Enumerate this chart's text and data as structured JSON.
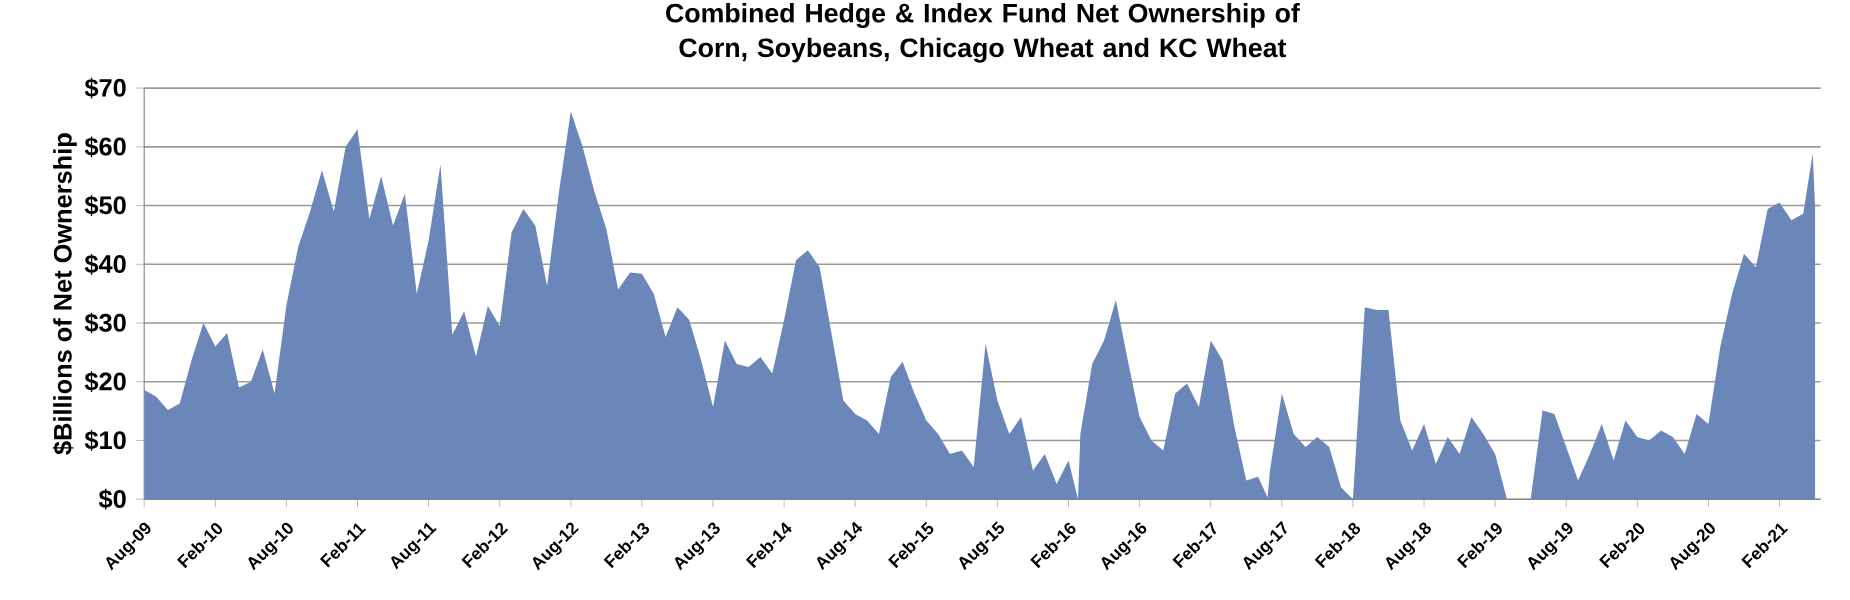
{
  "chart_data": {
    "type": "area",
    "title": "Combined Hedge & Index Fund Net Ownership of Corn, Soybeans, Chicago Wheat and KC Wheat",
    "ylabel": "$Billions of Net Ownership",
    "color": "#6b86b8",
    "grid": "y",
    "x": [
      "2009-08",
      "2009-09",
      "2009-10",
      "2009-11",
      "2009-12",
      "2010-01",
      "2010-02",
      "2010-03",
      "2010-04",
      "2010-05",
      "2010-06",
      "2010-07",
      "2010-08",
      "2010-09",
      "2010-10",
      "2010-11",
      "2010-12",
      "2011-01",
      "2011-02",
      "2011-03",
      "2011-04",
      "2011-05",
      "2011-06",
      "2011-07",
      "2011-08",
      "2011-09",
      "2011-10",
      "2011-11",
      "2011-12",
      "2012-01",
      "2012-02",
      "2012-03",
      "2012-04",
      "2012-05",
      "2012-06",
      "2012-07",
      "2012-08",
      "2012-09",
      "2012-10",
      "2012-11",
      "2012-12",
      "2013-01",
      "2013-02",
      "2013-03",
      "2013-04",
      "2013-05",
      "2013-06",
      "2013-07",
      "2013-08",
      "2013-09",
      "2013-10",
      "2013-11",
      "2013-12",
      "2014-01",
      "2014-02",
      "2014-03",
      "2014-04",
      "2014-05",
      "2014-06",
      "2014-07",
      "2014-08",
      "2014-09",
      "2014-10",
      "2014-11",
      "2014-12",
      "2015-01",
      "2015-02",
      "2015-03",
      "2015-04",
      "2015-05",
      "2015-06",
      "2015-07",
      "2015-08",
      "2015-09",
      "2015-10",
      "2015-11",
      "2015-12",
      "2016-01",
      "2016-02",
      "2016-02-25",
      "2016-03",
      "2016-04",
      "2016-05",
      "2016-06",
      "2016-07",
      "2016-08",
      "2016-09",
      "2016-10",
      "2016-11",
      "2016-12",
      "2017-01",
      "2017-02",
      "2017-03",
      "2017-04",
      "2017-05",
      "2017-06",
      "2017-06-25",
      "2017-07",
      "2017-08",
      "2017-09",
      "2017-10",
      "2017-11",
      "2017-12",
      "2018-01",
      "2018-02",
      "2018-03",
      "2018-04",
      "2018-05",
      "2018-06",
      "2018-07",
      "2018-08",
      "2018-09",
      "2018-10",
      "2018-11",
      "2018-12",
      "2019-01",
      "2019-02",
      "2019-03",
      "2019-04",
      "2019-05",
      "2019-06",
      "2019-07",
      "2019-08",
      "2019-09",
      "2019-10",
      "2019-11",
      "2019-12",
      "2020-01",
      "2020-02",
      "2020-03",
      "2020-04",
      "2020-05",
      "2020-06",
      "2020-07",
      "2020-08",
      "2020-09",
      "2020-10",
      "2020-11",
      "2020-12",
      "2021-01",
      "2021-02",
      "2021-03",
      "2021-04",
      "2021-04-25",
      "2021-05"
    ],
    "values": [
      18.6,
      17.5,
      15.2,
      16.3,
      23.7,
      30,
      26,
      28.3,
      19,
      20,
      25.5,
      18,
      33,
      43,
      49,
      56,
      49,
      60,
      63,
      47.7,
      55,
      46.6,
      52,
      35,
      44,
      57,
      28,
      32,
      24.3,
      32.9,
      29.5,
      45.4,
      49.4,
      46.6,
      36.3,
      52.3,
      66,
      60,
      52.3,
      46,
      35.7,
      38.6,
      38.4,
      35,
      27.6,
      32.7,
      30.5,
      23.6,
      15.7,
      27,
      23,
      22.5,
      24.2,
      21.4,
      30.5,
      40.7,
      42.4,
      39.5,
      28.2,
      16.8,
      14.5,
      13.4,
      11.1,
      20.8,
      23.4,
      18,
      13.4,
      11.1,
      7.7,
      8.3,
      5.5,
      26.5,
      16.8,
      11.1,
      14,
      4.9,
      7.7,
      2.6,
      6.6,
      0,
      11.1,
      23,
      27,
      33.9,
      23.6,
      14,
      10,
      8.3,
      18,
      19.7,
      15.7,
      27,
      23.6,
      12.3,
      3.2,
      3.8,
      0.3,
      4.9,
      18,
      11.1,
      8.9,
      10.6,
      8.9,
      2,
      0,
      32.7,
      32.2,
      32.2,
      13.4,
      8.3,
      12.8,
      6,
      10.6,
      7.7,
      14,
      11.1,
      7.7,
      0,
      0,
      0,
      15.1,
      14.5,
      8.9,
      3.2,
      7.7,
      12.8,
      6.6,
      13.4,
      10.6,
      10,
      11.7,
      10.6,
      7.7,
      14.5,
      12.8,
      25.9,
      35,
      41.8,
      39.5,
      49.4,
      50.5,
      47.5,
      48.6,
      58.9,
      49.8
    ],
    "xlim": [
      "2009-08",
      "2021-05-15"
    ],
    "xticks": [
      {
        "value": "2009-08",
        "label": "Aug-09"
      },
      {
        "value": "2010-02",
        "label": "Feb-10"
      },
      {
        "value": "2010-08",
        "label": "Aug-10"
      },
      {
        "value": "2011-02",
        "label": "Feb-11"
      },
      {
        "value": "2011-08",
        "label": "Aug-11"
      },
      {
        "value": "2012-02",
        "label": "Feb-12"
      },
      {
        "value": "2012-08",
        "label": "Aug-12"
      },
      {
        "value": "2013-02",
        "label": "Feb-13"
      },
      {
        "value": "2013-08",
        "label": "Aug-13"
      },
      {
        "value": "2014-02",
        "label": "Feb-14"
      },
      {
        "value": "2014-08",
        "label": "Aug-14"
      },
      {
        "value": "2015-02",
        "label": "Feb-15"
      },
      {
        "value": "2015-08",
        "label": "Aug-15"
      },
      {
        "value": "2016-02",
        "label": "Feb-16"
      },
      {
        "value": "2016-08",
        "label": "Aug-16"
      },
      {
        "value": "2017-02",
        "label": "Feb-17"
      },
      {
        "value": "2017-08",
        "label": "Aug-17"
      },
      {
        "value": "2018-02",
        "label": "Feb-18"
      },
      {
        "value": "2018-08",
        "label": "Aug-18"
      },
      {
        "value": "2019-02",
        "label": "Feb-19"
      },
      {
        "value": "2019-08",
        "label": "Aug-19"
      },
      {
        "value": "2020-02",
        "label": "Feb-20"
      },
      {
        "value": "2020-08",
        "label": "Aug-20"
      },
      {
        "value": "2021-02",
        "label": "Feb-21"
      }
    ],
    "ylim": [
      0,
      70
    ],
    "yticks": [
      {
        "value": 0,
        "label": "$0"
      },
      {
        "value": 10,
        "label": "$10"
      },
      {
        "value": 20,
        "label": "$20"
      },
      {
        "value": 30,
        "label": "$30"
      },
      {
        "value": 40,
        "label": "$40"
      },
      {
        "value": 50,
        "label": "$50"
      },
      {
        "value": 60,
        "label": "$60"
      },
      {
        "value": 70,
        "label": "$70"
      }
    ]
  }
}
